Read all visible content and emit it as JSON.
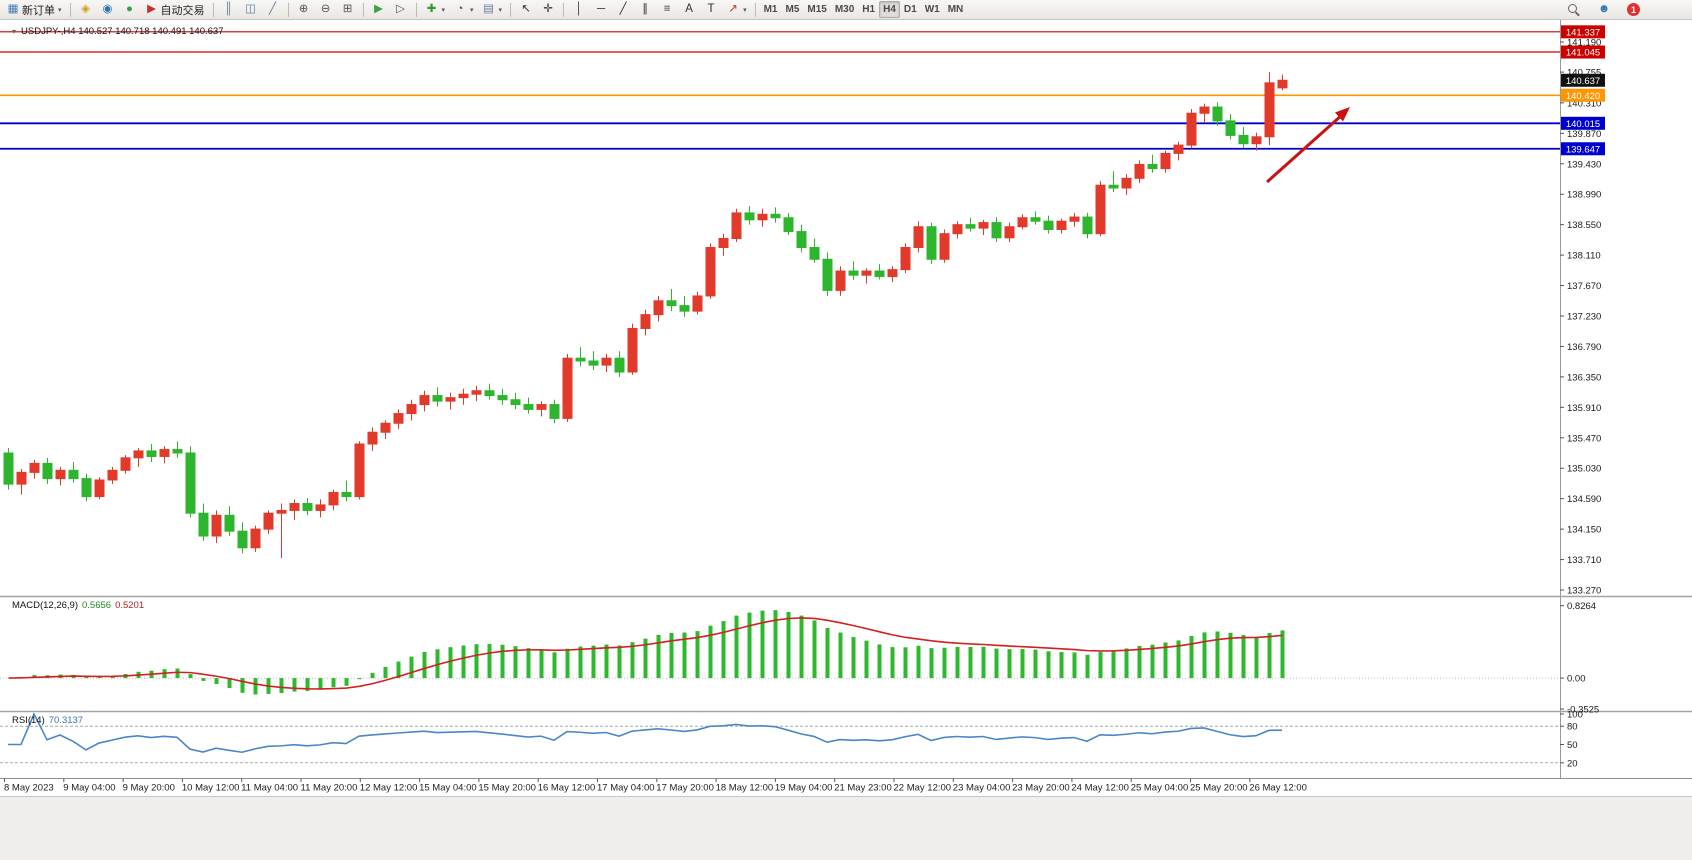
{
  "toolbar": {
    "groups": [
      {
        "items": [
          {
            "name": "new-order-button",
            "icon": "new-order",
            "label": "新订单",
            "caret": true
          }
        ]
      },
      {
        "items": [
          {
            "name": "navigator-button",
            "icon": "navigator"
          },
          {
            "name": "community-button",
            "icon": "community"
          },
          {
            "name": "market-button",
            "icon": "market"
          },
          {
            "name": "autotrading-button",
            "icon": "autotrading",
            "label": "自动交易"
          }
        ]
      },
      {
        "items": [
          {
            "name": "bar-chart-button",
            "icon": "bars"
          },
          {
            "name": "candlestick-chart-button",
            "icon": "candles"
          },
          {
            "name": "line-chart-button",
            "icon": "linechart"
          }
        ]
      },
      {
        "items": [
          {
            "name": "zoom-in-button",
            "icon": "zoom-in"
          },
          {
            "name": "zoom-out-button",
            "icon": "zoom-out"
          },
          {
            "name": "tile-windows-button",
            "icon": "tile"
          }
        ]
      },
      {
        "items": [
          {
            "name": "auto-scroll-button",
            "icon": "autoscroll"
          },
          {
            "name": "chart-shift-button",
            "icon": "chartshift"
          }
        ]
      },
      {
        "items": [
          {
            "name": "indicators-button",
            "icon": "indicators",
            "caret": true
          },
          {
            "name": "periods-button",
            "icon": "periods",
            "caret": true
          },
          {
            "name": "templates-button",
            "icon": "templates",
            "caret": true
          }
        ]
      },
      {
        "items": [
          {
            "name": "cursor-button",
            "icon": "cursor"
          },
          {
            "name": "crosshair-button",
            "icon": "crosshair"
          }
        ]
      },
      {
        "items": [
          {
            "name": "vertical-line-button",
            "icon": "vline"
          },
          {
            "name": "horizontal-line-button",
            "icon": "hline"
          },
          {
            "name": "trendline-button",
            "icon": "trendline"
          },
          {
            "name": "equidistant-channel-button",
            "icon": "channel"
          },
          {
            "name": "fibonacci-button",
            "icon": "fibo"
          },
          {
            "name": "text-button",
            "icon": "text"
          },
          {
            "name": "text-label-button",
            "icon": "label"
          },
          {
            "name": "arrows-button",
            "icon": "arrows",
            "caret": true
          }
        ]
      },
      {
        "items": [
          {
            "name": "tf-m1-button",
            "label": "M1",
            "tf": true
          },
          {
            "name": "tf-m5-button",
            "label": "M5",
            "tf": true
          },
          {
            "name": "tf-m15-button",
            "label": "M15",
            "tf": true
          },
          {
            "name": "tf-m30-button",
            "label": "M30",
            "tf": true
          },
          {
            "name": "tf-h1-button",
            "label": "H1",
            "tf": true
          },
          {
            "name": "tf-h4-button",
            "label": "H4",
            "tf": true,
            "pressed": true
          },
          {
            "name": "tf-d1-button",
            "label": "D1",
            "tf": true
          },
          {
            "name": "tf-w1-button",
            "label": "W1",
            "tf": true
          },
          {
            "name": "tf-mn-button",
            "label": "MN",
            "tf": true
          }
        ]
      }
    ],
    "right": [
      {
        "name": "search-button",
        "icon": "search"
      },
      {
        "name": "user-button",
        "icon": "user"
      },
      {
        "name": "notification-badge",
        "label": "1",
        "badge": true
      }
    ]
  },
  "chart": {
    "title": "USDJPY-,H4 140.527 140.718 140.491 140.637",
    "price_labels": [
      "141.190",
      "140.755",
      "140.310",
      "139.870",
      "139.430",
      "138.990",
      "138.550",
      "138.110",
      "137.670",
      "137.230",
      "136.790",
      "136.350",
      "135.910",
      "135.470",
      "135.030",
      "134.590",
      "134.150",
      "133.710",
      "133.270"
    ],
    "levels": [
      {
        "price": 141.337,
        "label": "141.337",
        "color": "#cc0000",
        "width": 1.2
      },
      {
        "price": 141.045,
        "label": "141.045",
        "color": "#cc0000",
        "width": 1.2
      },
      {
        "price": 140.42,
        "label": "140.420",
        "color": "#ff9500",
        "width": 1.6
      },
      {
        "price": 140.015,
        "label": "140.015",
        "color": "#0000cc",
        "width": 1.8
      },
      {
        "price": 139.647,
        "label": "139.647",
        "color": "#0000cc",
        "width": 1.8
      }
    ],
    "current_price": {
      "value": 140.637,
      "label": "140.637",
      "color": "#111111"
    }
  },
  "chart_data": {
    "type": "candlestick",
    "symbol": "USDJPY-",
    "period": "H4",
    "colors": {
      "up": "#e23a2a",
      "down": "#2db52d",
      "macd_hist": "#2eb82e",
      "macd_signal": "#d32020",
      "rsi": "#4a86c8",
      "arrow": "#cc1111"
    },
    "candles": [
      [
        135.25,
        135.32,
        134.72,
        134.8
      ],
      [
        134.8,
        135.02,
        134.65,
        134.97
      ],
      [
        134.97,
        135.15,
        134.88,
        135.1
      ],
      [
        135.1,
        135.18,
        134.8,
        134.88
      ],
      [
        134.88,
        135.05,
        134.78,
        135.0
      ],
      [
        135.0,
        135.12,
        134.82,
        134.88
      ],
      [
        134.88,
        134.95,
        134.55,
        134.62
      ],
      [
        134.62,
        134.9,
        134.58,
        134.86
      ],
      [
        134.86,
        135.05,
        134.8,
        135.0
      ],
      [
        135.0,
        135.22,
        134.95,
        135.18
      ],
      [
        135.18,
        135.32,
        135.05,
        135.28
      ],
      [
        135.28,
        135.38,
        135.12,
        135.2
      ],
      [
        135.2,
        135.35,
        135.1,
        135.3
      ],
      [
        135.3,
        135.42,
        135.18,
        135.25
      ],
      [
        135.25,
        135.35,
        134.32,
        134.38
      ],
      [
        134.38,
        134.52,
        133.98,
        134.05
      ],
      [
        134.05,
        134.42,
        133.95,
        134.35
      ],
      [
        134.35,
        134.48,
        134.05,
        134.12
      ],
      [
        134.12,
        134.25,
        133.8,
        133.88
      ],
      [
        133.88,
        134.2,
        133.82,
        134.15
      ],
      [
        134.15,
        134.42,
        134.08,
        134.38
      ],
      [
        134.38,
        134.52,
        133.73,
        134.42
      ],
      [
        134.42,
        134.58,
        134.28,
        134.52
      ],
      [
        134.52,
        134.6,
        134.35,
        134.42
      ],
      [
        134.42,
        134.58,
        134.32,
        134.5
      ],
      [
        134.5,
        134.72,
        134.42,
        134.68
      ],
      [
        134.68,
        134.85,
        134.55,
        134.62
      ],
      [
        134.62,
        135.42,
        134.58,
        135.38
      ],
      [
        135.38,
        135.62,
        135.28,
        135.55
      ],
      [
        135.55,
        135.72,
        135.45,
        135.68
      ],
      [
        135.68,
        135.88,
        135.6,
        135.82
      ],
      [
        135.82,
        136.02,
        135.72,
        135.95
      ],
      [
        135.95,
        136.15,
        135.85,
        136.08
      ],
      [
        136.08,
        136.2,
        135.92,
        136.0
      ],
      [
        136.0,
        136.12,
        135.88,
        136.05
      ],
      [
        136.05,
        136.18,
        135.95,
        136.1
      ],
      [
        136.1,
        136.22,
        136.0,
        136.15
      ],
      [
        136.15,
        136.25,
        136.02,
        136.08
      ],
      [
        136.08,
        136.18,
        135.95,
        136.02
      ],
      [
        136.02,
        136.12,
        135.88,
        135.95
      ],
      [
        135.95,
        136.05,
        135.82,
        135.88
      ],
      [
        135.88,
        136.0,
        135.78,
        135.95
      ],
      [
        135.95,
        136.02,
        135.68,
        135.75
      ],
      [
        135.75,
        136.68,
        135.7,
        136.62
      ],
      [
        136.62,
        136.78,
        136.5,
        136.58
      ],
      [
        136.58,
        136.72,
        136.45,
        136.52
      ],
      [
        136.52,
        136.68,
        136.42,
        136.62
      ],
      [
        136.62,
        136.72,
        136.35,
        136.42
      ],
      [
        136.42,
        137.12,
        136.38,
        137.05
      ],
      [
        137.05,
        137.32,
        136.95,
        137.25
      ],
      [
        137.25,
        137.52,
        137.15,
        137.45
      ],
      [
        137.45,
        137.62,
        137.3,
        137.38
      ],
      [
        137.38,
        137.52,
        137.22,
        137.3
      ],
      [
        137.3,
        137.58,
        137.25,
        137.52
      ],
      [
        137.52,
        138.28,
        137.48,
        138.22
      ],
      [
        138.22,
        138.42,
        138.1,
        138.35
      ],
      [
        138.35,
        138.78,
        138.3,
        138.72
      ],
      [
        138.72,
        138.82,
        138.55,
        138.62
      ],
      [
        138.62,
        138.78,
        138.52,
        138.7
      ],
      [
        138.7,
        138.8,
        138.58,
        138.65
      ],
      [
        138.65,
        138.72,
        138.4,
        138.45
      ],
      [
        138.45,
        138.55,
        138.15,
        138.22
      ],
      [
        138.22,
        138.35,
        138.0,
        138.05
      ],
      [
        138.05,
        138.15,
        137.52,
        137.6
      ],
      [
        137.6,
        137.95,
        137.52,
        137.88
      ],
      [
        137.88,
        138.02,
        137.75,
        137.82
      ],
      [
        137.82,
        137.92,
        137.7,
        137.88
      ],
      [
        137.88,
        137.98,
        137.76,
        137.8
      ],
      [
        137.8,
        137.95,
        137.72,
        137.9
      ],
      [
        137.9,
        138.28,
        137.85,
        138.22
      ],
      [
        138.22,
        138.6,
        138.15,
        138.52
      ],
      [
        138.52,
        138.58,
        137.98,
        138.05
      ],
      [
        138.05,
        138.48,
        138.0,
        138.42
      ],
      [
        138.42,
        138.6,
        138.35,
        138.55
      ],
      [
        138.55,
        138.65,
        138.45,
        138.5
      ],
      [
        138.5,
        138.62,
        138.4,
        138.58
      ],
      [
        138.58,
        138.66,
        138.3,
        138.36
      ],
      [
        138.36,
        138.58,
        138.3,
        138.52
      ],
      [
        138.52,
        138.7,
        138.48,
        138.65
      ],
      [
        138.65,
        138.74,
        138.55,
        138.6
      ],
      [
        138.6,
        138.68,
        138.42,
        138.48
      ],
      [
        138.48,
        138.64,
        138.42,
        138.6
      ],
      [
        138.6,
        138.72,
        138.52,
        138.66
      ],
      [
        138.66,
        138.72,
        138.35,
        138.42
      ],
      [
        138.42,
        139.18,
        138.38,
        139.12
      ],
      [
        139.12,
        139.32,
        139.02,
        139.08
      ],
      [
        139.08,
        139.28,
        138.98,
        139.22
      ],
      [
        139.22,
        139.48,
        139.15,
        139.42
      ],
      [
        139.42,
        139.56,
        139.3,
        139.36
      ],
      [
        139.36,
        139.62,
        139.3,
        139.58
      ],
      [
        139.58,
        139.75,
        139.48,
        139.7
      ],
      [
        139.7,
        140.22,
        139.65,
        140.16
      ],
      [
        140.16,
        140.3,
        140.02,
        140.25
      ],
      [
        140.25,
        140.32,
        139.98,
        140.05
      ],
      [
        140.05,
        140.15,
        139.78,
        139.84
      ],
      [
        139.84,
        139.96,
        139.66,
        139.72
      ],
      [
        139.72,
        139.88,
        139.62,
        139.82
      ],
      [
        139.82,
        140.755,
        139.7,
        140.6
      ],
      [
        140.527,
        140.718,
        140.491,
        140.637
      ]
    ],
    "indicators": {
      "macd": {
        "title": "MACD(12,26,9)",
        "value_main": "0.5656",
        "value_signal": "0.5201",
        "scale": [
          "0.8264",
          "0.00",
          "-0.3525"
        ]
      },
      "rsi": {
        "title": "RSI(14)",
        "value": "70.3137",
        "scale": [
          "100",
          "80",
          "50",
          "20"
        ],
        "levels": [
          80,
          20
        ]
      }
    },
    "x_labels": [
      "8 May 2023",
      "9 May 04:00",
      "9 May 20:00",
      "10 May 12:00",
      "11 May 04:00",
      "11 May 20:00",
      "12 May 12:00",
      "15 May 04:00",
      "15 May 20:00",
      "16 May 12:00",
      "17 May 04:00",
      "17 May 20:00",
      "18 May 12:00",
      "19 May 04:00",
      "21 May 23:00",
      "22 May 12:00",
      "23 May 04:00",
      "23 May 20:00",
      "24 May 12:00",
      "25 May 04:00",
      "25 May 20:00",
      "26 May 12:00"
    ]
  }
}
